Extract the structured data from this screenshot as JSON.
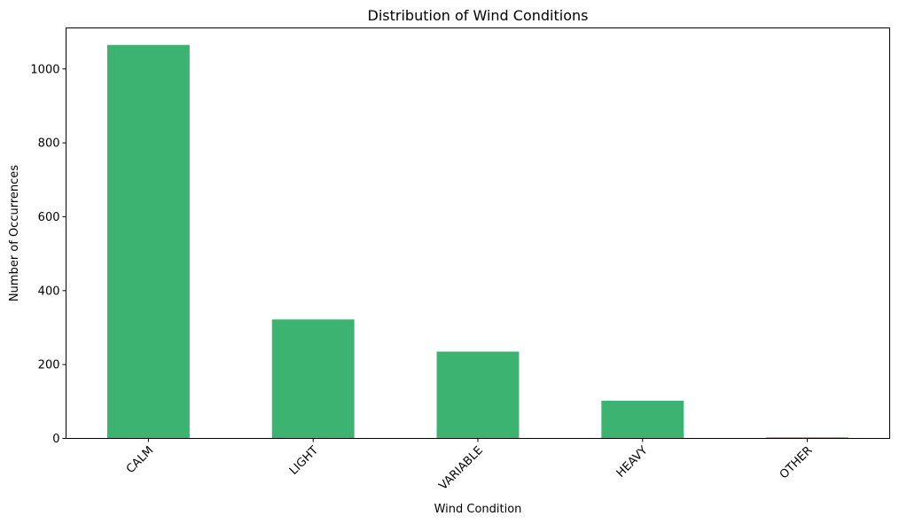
{
  "chart_data": {
    "type": "bar",
    "title": "Distribution of Wind Conditions",
    "xlabel": "Wind Condition",
    "ylabel": "Number of Occurrences",
    "categories": [
      "CALM",
      "LIGHT",
      "VARIABLE",
      "HEAVY",
      "OTHER"
    ],
    "values": [
      1065,
      322,
      235,
      102,
      3
    ],
    "ylim": [
      0,
      1111
    ],
    "yticks": [
      0,
      200,
      400,
      600,
      800,
      1000
    ],
    "grid": false,
    "legend": "none",
    "bar_color": "#3CB371",
    "xtick_rotation": 45
  }
}
